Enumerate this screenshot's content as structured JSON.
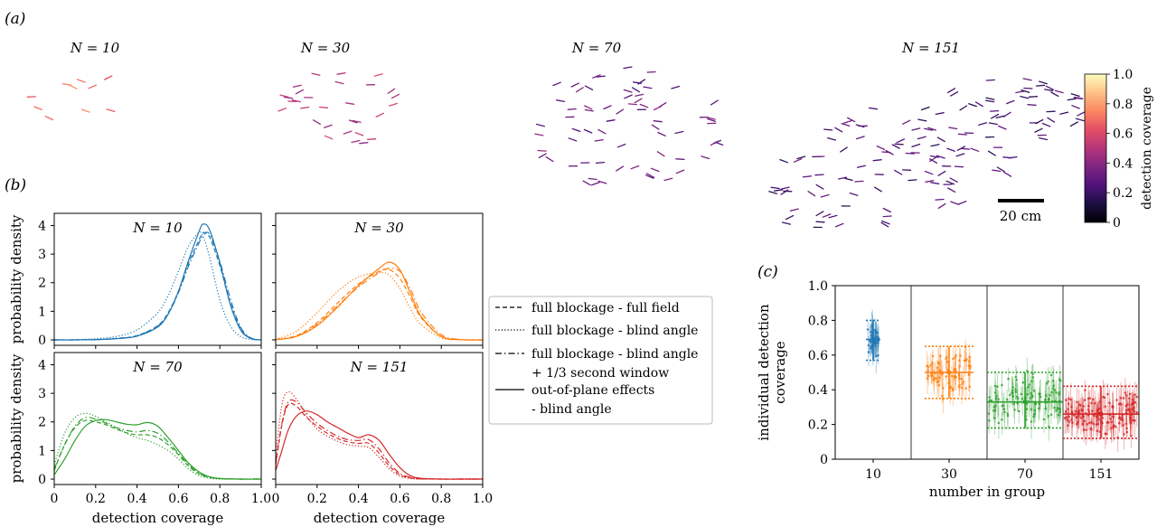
{
  "panel_labels": {
    "a": "(a)",
    "b": "(b)",
    "c": "(c)"
  },
  "colorbar": {
    "label": "detection coverage",
    "ticks": [
      "0",
      "0.2",
      "0.4",
      "0.6",
      "0.8",
      "1.0"
    ],
    "colormap": "magma"
  },
  "scale_bar": {
    "label": "20 cm"
  },
  "colors": {
    "N10": "#1f77b4",
    "N30": "#ff7f0e",
    "N70": "#2ca02c",
    "N151": "#d62728"
  },
  "snapshots": [
    {
      "title": "N = 10",
      "n": 10,
      "mean_coverage": 0.7
    },
    {
      "title": "N = 30",
      "n": 30,
      "mean_coverage": 0.5
    },
    {
      "title": "N = 70",
      "n": 70,
      "mean_coverage": 0.33
    },
    {
      "title": "N = 151",
      "n": 151,
      "mean_coverage": 0.25
    }
  ],
  "legend": {
    "entries": [
      {
        "style": "dashed",
        "lines": [
          "full blockage - full field"
        ]
      },
      {
        "style": "dotted",
        "lines": [
          "full blockage - blind angle"
        ]
      },
      {
        "style": "dashdot",
        "lines": [
          "full blockage - blind angle",
          "+ 1/3 second window"
        ]
      },
      {
        "style": "solid",
        "lines": [
          "out-of-plane effects",
          "- blind angle"
        ]
      }
    ]
  },
  "chart_data": [
    {
      "type": "line",
      "panel": "b",
      "xlabel": "detection coverage",
      "ylabel": "probability density",
      "xlim": [
        0,
        1.0
      ],
      "x_ticks": [
        "0",
        "0.2",
        "0.4",
        "0.6",
        "0.8",
        "1.0"
      ],
      "subplots": [
        {
          "title": "N = 10",
          "color": "#1f77b4",
          "ylim": [
            0,
            4.3
          ],
          "y_ticks": [
            "0",
            "1",
            "2",
            "3",
            "4"
          ],
          "x": [
            0,
            0.1,
            0.2,
            0.3,
            0.4,
            0.5,
            0.55,
            0.6,
            0.65,
            0.7,
            0.72,
            0.75,
            0.8,
            0.85,
            0.9,
            0.95,
            1.0
          ],
          "series": [
            {
              "style": "dashed",
              "values": [
                0,
                0,
                0.01,
                0.05,
                0.15,
                0.5,
                0.95,
                1.7,
                2.7,
                3.5,
                3.75,
                3.6,
                2.6,
                1.3,
                0.4,
                0.05,
                0
              ]
            },
            {
              "style": "dotted",
              "values": [
                0,
                0.01,
                0.04,
                0.12,
                0.35,
                0.95,
                1.55,
                2.4,
                3.3,
                3.75,
                3.6,
                2.9,
                1.4,
                0.5,
                0.12,
                0.02,
                0
              ]
            },
            {
              "style": "dashdot",
              "values": [
                0,
                0,
                0.01,
                0.05,
                0.15,
                0.48,
                0.9,
                1.65,
                2.6,
                3.4,
                3.65,
                3.7,
                2.75,
                1.45,
                0.45,
                0.07,
                0
              ]
            },
            {
              "style": "solid",
              "values": [
                0,
                0,
                0.01,
                0.04,
                0.13,
                0.45,
                0.9,
                1.7,
                2.8,
                3.8,
                4.05,
                3.85,
                2.7,
                1.25,
                0.35,
                0.05,
                0
              ]
            }
          ]
        },
        {
          "title": "N = 30",
          "color": "#ff7f0e",
          "ylim": [
            0,
            4.3
          ],
          "y_ticks": [
            "0",
            "1",
            "2",
            "3",
            "4"
          ],
          "x": [
            0,
            0.1,
            0.2,
            0.3,
            0.4,
            0.5,
            0.55,
            0.6,
            0.65,
            0.7,
            0.8,
            0.9,
            1.0
          ],
          "series": [
            {
              "style": "dashed",
              "values": [
                0.01,
                0.15,
                0.6,
                1.3,
                1.95,
                2.4,
                2.45,
                2.15,
                1.5,
                0.8,
                0.12,
                0.01,
                0
              ]
            },
            {
              "style": "dotted",
              "values": [
                0.02,
                0.3,
                0.95,
                1.7,
                2.2,
                2.35,
                2.25,
                1.8,
                1.1,
                0.55,
                0.07,
                0,
                0
              ]
            },
            {
              "style": "dashdot",
              "values": [
                0.01,
                0.12,
                0.55,
                1.2,
                1.85,
                2.35,
                2.5,
                2.4,
                1.8,
                1.0,
                0.18,
                0.01,
                0
              ]
            },
            {
              "style": "solid",
              "values": [
                0.01,
                0.12,
                0.5,
                1.15,
                1.9,
                2.5,
                2.72,
                2.45,
                1.65,
                0.85,
                0.12,
                0.01,
                0
              ]
            }
          ]
        },
        {
          "title": "N = 70",
          "color": "#2ca02c",
          "ylim": [
            0,
            4.3
          ],
          "y_ticks": [
            "0",
            "1",
            "2",
            "3",
            "4"
          ],
          "x": [
            0,
            0.05,
            0.1,
            0.15,
            0.2,
            0.25,
            0.3,
            0.35,
            0.4,
            0.45,
            0.5,
            0.55,
            0.6,
            0.65,
            0.7,
            0.75,
            0.8,
            0.9,
            1.0
          ],
          "series": [
            {
              "style": "dashed",
              "values": [
                0.3,
                1.2,
                1.8,
                2.05,
                2.0,
                1.9,
                1.75,
                1.62,
                1.55,
                1.55,
                1.45,
                1.2,
                0.85,
                0.45,
                0.18,
                0.06,
                0.02,
                0,
                0
              ]
            },
            {
              "style": "dotted",
              "values": [
                0.5,
                1.6,
                2.15,
                2.3,
                2.2,
                2.0,
                1.8,
                1.6,
                1.45,
                1.35,
                1.2,
                1.0,
                0.7,
                0.35,
                0.12,
                0.03,
                0,
                0,
                0
              ]
            },
            {
              "style": "dashdot",
              "values": [
                0.35,
                1.2,
                1.85,
                2.15,
                2.1,
                1.95,
                1.8,
                1.7,
                1.65,
                1.7,
                1.6,
                1.3,
                0.9,
                0.5,
                0.2,
                0.07,
                0.02,
                0,
                0
              ]
            },
            {
              "style": "solid",
              "values": [
                0.15,
                0.7,
                1.35,
                1.85,
                2.05,
                2.08,
                2.0,
                1.92,
                1.9,
                1.98,
                1.85,
                1.45,
                1.0,
                0.55,
                0.25,
                0.08,
                0.02,
                0,
                0
              ]
            }
          ]
        },
        {
          "title": "N = 151",
          "color": "#d62728",
          "ylim": [
            0,
            4.3
          ],
          "y_ticks": [
            "0",
            "1",
            "2",
            "3",
            "4"
          ],
          "x": [
            0,
            0.03,
            0.06,
            0.1,
            0.15,
            0.2,
            0.25,
            0.3,
            0.35,
            0.4,
            0.45,
            0.5,
            0.55,
            0.6,
            0.65,
            0.7,
            0.8,
            0.9,
            1.0
          ],
          "series": [
            {
              "style": "dashed",
              "values": [
                0.5,
                1.9,
                2.6,
                2.55,
                2.15,
                1.85,
                1.6,
                1.42,
                1.3,
                1.25,
                1.25,
                0.9,
                0.45,
                0.15,
                0.04,
                0.01,
                0,
                0,
                0
              ]
            },
            {
              "style": "dotted",
              "values": [
                0.8,
                2.6,
                3.05,
                2.8,
                2.2,
                1.75,
                1.5,
                1.32,
                1.2,
                1.15,
                1.1,
                0.75,
                0.35,
                0.1,
                0.02,
                0,
                0,
                0,
                0
              ]
            },
            {
              "style": "dashdot",
              "values": [
                0.55,
                1.95,
                2.7,
                2.7,
                2.3,
                1.95,
                1.7,
                1.5,
                1.38,
                1.35,
                1.38,
                1.05,
                0.55,
                0.2,
                0.06,
                0.01,
                0,
                0,
                0
              ]
            },
            {
              "style": "solid",
              "values": [
                0.3,
                1.0,
                1.7,
                2.2,
                2.38,
                2.25,
                2.0,
                1.8,
                1.6,
                1.45,
                1.55,
                1.35,
                0.85,
                0.4,
                0.12,
                0.03,
                0,
                0,
                0
              ]
            }
          ]
        }
      ]
    },
    {
      "type": "scatter",
      "panel": "c",
      "xlabel": "number in group",
      "ylabel": "individual detection coverage",
      "ylim": [
        0,
        1.0
      ],
      "y_ticks": [
        "0",
        "0.2",
        "0.4",
        "0.6",
        "0.8",
        "1.0"
      ],
      "categories": [
        "10",
        "30",
        "70",
        "151"
      ],
      "groups": [
        {
          "category": "10",
          "color": "#1f77b4",
          "mean": 0.69,
          "lower": 0.57,
          "upper": 0.8
        },
        {
          "category": "30",
          "color": "#ff7f0e",
          "mean": 0.5,
          "lower": 0.35,
          "upper": 0.65
        },
        {
          "category": "70",
          "color": "#2ca02c",
          "mean": 0.33,
          "lower": 0.18,
          "upper": 0.5
        },
        {
          "category": "151",
          "color": "#d62728",
          "mean": 0.26,
          "lower": 0.12,
          "upper": 0.42
        }
      ]
    }
  ]
}
